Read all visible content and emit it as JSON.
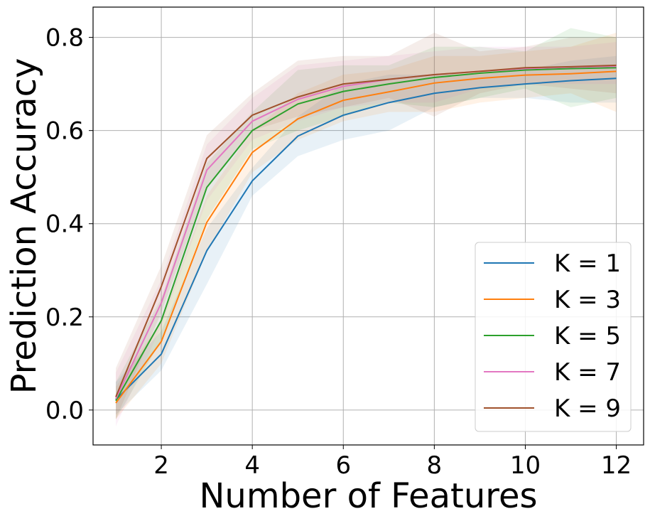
{
  "chart_data": {
    "type": "line",
    "xlabel": "Number of Features",
    "ylabel": "Prediction Accuracy",
    "xlim": [
      0.5,
      12.6
    ],
    "ylim": [
      -0.075,
      0.865
    ],
    "xticks": [
      2,
      4,
      6,
      8,
      10,
      12
    ],
    "xtick_labels": [
      "2",
      "4",
      "6",
      "8",
      "10",
      "12"
    ],
    "yticks": [
      0.0,
      0.2,
      0.4,
      0.6,
      0.8
    ],
    "ytick_labels": [
      "0.0",
      "0.2",
      "0.4",
      "0.6",
      "0.8"
    ],
    "grid": true,
    "legend_position": "lower-right",
    "x": [
      1,
      2,
      3,
      4,
      5,
      6,
      7,
      8,
      9,
      10,
      11,
      12
    ],
    "series": [
      {
        "name": "K = 1",
        "color": "#1f77b4",
        "values": [
          0.022,
          0.12,
          0.342,
          0.492,
          0.588,
          0.633,
          0.66,
          0.68,
          0.692,
          0.7,
          0.707,
          0.712
        ],
        "lower": [
          -0.01,
          0.085,
          0.27,
          0.46,
          0.545,
          0.58,
          0.6,
          0.65,
          0.67,
          0.67,
          0.66,
          0.66
        ],
        "upper": [
          0.06,
          0.17,
          0.39,
          0.52,
          0.63,
          0.7,
          0.72,
          0.72,
          0.72,
          0.73,
          0.75,
          0.76
        ]
      },
      {
        "name": "K = 3",
        "color": "#ff7f0e",
        "values": [
          0.015,
          0.147,
          0.403,
          0.553,
          0.625,
          0.665,
          0.683,
          0.702,
          0.712,
          0.719,
          0.722,
          0.727
        ],
        "lower": [
          -0.02,
          0.1,
          0.34,
          0.51,
          0.58,
          0.62,
          0.64,
          0.64,
          0.66,
          0.67,
          0.68,
          0.64
        ],
        "upper": [
          0.05,
          0.19,
          0.46,
          0.6,
          0.68,
          0.72,
          0.73,
          0.76,
          0.76,
          0.77,
          0.78,
          0.81
        ]
      },
      {
        "name": "K = 5",
        "color": "#2ca02c",
        "values": [
          0.02,
          0.192,
          0.478,
          0.6,
          0.657,
          0.684,
          0.7,
          0.714,
          0.723,
          0.73,
          0.733,
          0.735
        ],
        "lower": [
          -0.02,
          0.15,
          0.41,
          0.56,
          0.6,
          0.63,
          0.66,
          0.65,
          0.67,
          0.69,
          0.65,
          0.67
        ],
        "upper": [
          0.06,
          0.24,
          0.53,
          0.64,
          0.73,
          0.74,
          0.74,
          0.78,
          0.78,
          0.77,
          0.82,
          0.8
        ]
      },
      {
        "name": "K = 7",
        "color": "#e377c2",
        "values": [
          0.024,
          0.23,
          0.515,
          0.62,
          0.667,
          0.695,
          0.71,
          0.72,
          0.727,
          0.733,
          0.736,
          0.738
        ],
        "lower": [
          -0.035,
          0.18,
          0.45,
          0.58,
          0.62,
          0.65,
          0.66,
          0.66,
          0.69,
          0.7,
          0.7,
          0.7
        ],
        "upper": [
          0.08,
          0.28,
          0.57,
          0.67,
          0.74,
          0.75,
          0.76,
          0.77,
          0.78,
          0.78,
          0.78,
          0.79
        ]
      },
      {
        "name": "K = 9",
        "color": "#a0522d",
        "values": [
          0.028,
          0.265,
          0.54,
          0.633,
          0.672,
          0.7,
          0.71,
          0.72,
          0.727,
          0.735,
          0.737,
          0.74
        ],
        "lower": [
          -0.02,
          0.21,
          0.48,
          0.6,
          0.63,
          0.65,
          0.67,
          0.63,
          0.68,
          0.7,
          0.69,
          0.68
        ],
        "upper": [
          0.09,
          0.31,
          0.59,
          0.68,
          0.75,
          0.76,
          0.76,
          0.81,
          0.77,
          0.78,
          0.8,
          0.8
        ]
      }
    ]
  }
}
